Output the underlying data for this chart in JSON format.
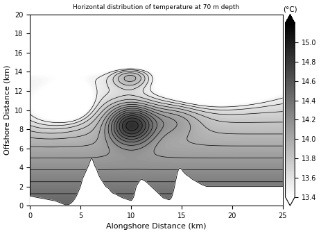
{
  "title": "Horizontal distribution of temperature at 70 m depth",
  "xlabel": "Alongshore Distance (km)",
  "ylabel": "Offshore Distance (km)",
  "xlim": [
    0,
    25
  ],
  "ylim": [
    0,
    20
  ],
  "xticks": [
    0,
    5,
    10,
    15,
    20,
    25
  ],
  "yticks": [
    0,
    2,
    4,
    6,
    8,
    10,
    12,
    14,
    16,
    18,
    20
  ],
  "cbar_label": "(°C)",
  "cbar_ticks": [
    13.4,
    13.6,
    13.8,
    14.0,
    14.2,
    14.4,
    14.6,
    14.8,
    15.0
  ],
  "temp_min": 13.4,
  "temp_max": 15.2,
  "contour_levels": [
    13.5,
    13.6,
    13.7,
    13.8,
    13.9,
    14.0,
    14.1,
    14.2,
    14.3,
    14.4,
    14.5,
    14.6,
    14.7,
    14.8,
    14.9,
    15.0
  ]
}
